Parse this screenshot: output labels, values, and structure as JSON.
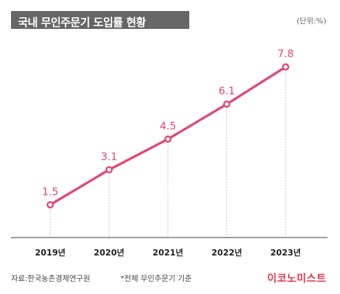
{
  "header": {
    "title": "국내 무인주문기 도입률 현황",
    "unit": "(단위:%)"
  },
  "footer": {
    "source": "자료:한국농촌경제연구원",
    "note": "*전체 무인주문기 기준",
    "brand": "이코노미스트"
  },
  "colors": {
    "line": "#e8456f",
    "title_bg": "#666666",
    "brand": "#e8334a"
  },
  "chart_data": {
    "type": "line",
    "categories": [
      "2019년",
      "2020년",
      "2021년",
      "2022년",
      "2023년"
    ],
    "series": [
      {
        "values": [
          1.5,
          3.1,
          4.5,
          6.1,
          7.8
        ]
      }
    ],
    "data_labels": [
      "1.5",
      "3.1",
      "4.5",
      "6.1",
      "7.8"
    ],
    "ylim": [
      0,
      8.5
    ],
    "grid": "vertical-dashed",
    "legend": "none"
  }
}
